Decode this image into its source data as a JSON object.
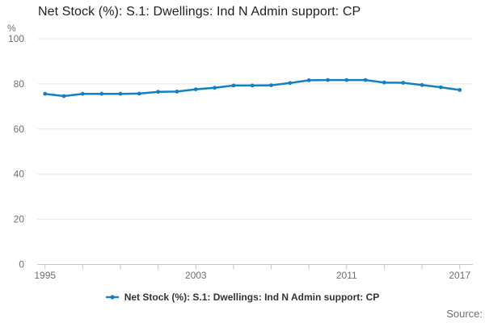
{
  "title": "Net Stock (%): S.1: Dwellings: Ind N Admin support: CP",
  "y_axis_unit": "%",
  "source_label": "Source:",
  "legend": {
    "label": "Net Stock (%): S.1: Dwellings: Ind N Admin support: CP"
  },
  "colors": {
    "line": "#1380c4",
    "grid": "#e6e6e6",
    "axis": "#bdc9da",
    "tick_text": "#6f6f6f",
    "title_text": "#212121"
  },
  "chart_data": {
    "type": "line",
    "title": "Net Stock (%): S.1: Dwellings: Ind N Admin support: CP",
    "xlabel": "",
    "ylabel": "%",
    "ylim": [
      0,
      100
    ],
    "yticks": [
      0,
      20,
      40,
      60,
      80,
      100
    ],
    "x": [
      1995,
      1996,
      1997,
      1998,
      1999,
      2000,
      2001,
      2002,
      2003,
      2004,
      2005,
      2006,
      2007,
      2008,
      2009,
      2010,
      2011,
      2012,
      2013,
      2014,
      2015,
      2016,
      2017
    ],
    "xticks_labeled": [
      "1995",
      "2003",
      "2011",
      "2017"
    ],
    "xtick_step": 2,
    "grid": true,
    "legend_position": "bottom",
    "series": [
      {
        "name": "Net Stock (%): S.1: Dwellings: Ind N Admin support: CP",
        "values": [
          75.6,
          74.6,
          75.6,
          75.6,
          75.6,
          75.7,
          76.5,
          76.6,
          77.6,
          78.3,
          79.3,
          79.3,
          79.4,
          80.4,
          81.6,
          81.7,
          81.7,
          81.7,
          80.6,
          80.5,
          79.5,
          78.5,
          77.3
        ]
      }
    ]
  }
}
